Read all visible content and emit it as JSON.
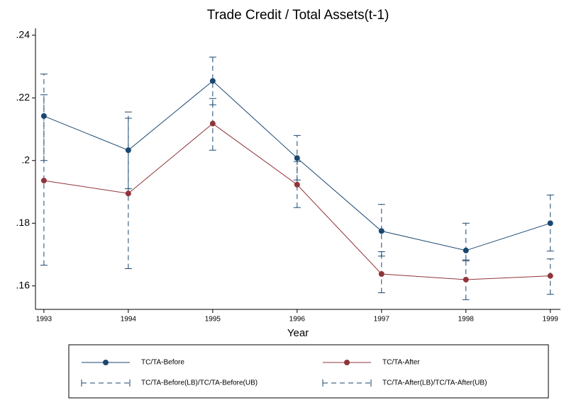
{
  "chart_data": {
    "type": "line",
    "title": "Trade Credit / Total Assets(t-1)",
    "x_label": "Year",
    "x": [
      1993,
      1994,
      1995,
      1996,
      1997,
      1998,
      1999
    ],
    "xlim": [
      1992.9,
      1999.12
    ],
    "xticks": [
      1993,
      1994,
      1995,
      1996,
      1997,
      1998,
      1999
    ],
    "ylim": [
      0.1525,
      0.2422
    ],
    "yticks": [
      {
        "value": 0.16,
        "label": ".16"
      },
      {
        "value": 0.18,
        "label": ".18"
      },
      {
        "value": 0.2,
        "label": ".2"
      },
      {
        "value": 0.22,
        "label": ".22"
      },
      {
        "value": 0.24,
        "label": ".24"
      }
    ],
    "series": [
      {
        "name": "TC/TA-Before",
        "color": "#1a476f",
        "values": [
          0.2142,
          0.2033,
          0.2254,
          0.2008,
          0.1775,
          0.1713,
          0.18
        ]
      },
      {
        "name": "TC/TA-After",
        "color": "#90353b",
        "values": [
          0.1936,
          0.1895,
          0.2118,
          0.1923,
          0.1638,
          0.162,
          0.1632
        ]
      }
    ],
    "error_bars": [
      {
        "name": "TC/TA-Before(LB)/TC/TA-Before(UB)",
        "color": "#1a476f",
        "lower": [
          0.2,
          0.191,
          0.2178,
          0.1938,
          0.1695,
          0.1683,
          0.1711
        ],
        "upper": [
          0.2276,
          0.2155,
          0.233,
          0.208,
          0.186,
          0.18,
          0.189
        ]
      },
      {
        "name": "TC/TA-After(LB)/TC/TA-After(UB)",
        "color": "#1a476f",
        "lower": [
          0.1666,
          0.1655,
          0.2033,
          0.185,
          0.1578,
          0.1556,
          0.1573
        ],
        "upper": [
          0.221,
          0.2135,
          0.2198,
          0.1997,
          0.1709,
          0.168,
          0.1686
        ]
      }
    ]
  }
}
